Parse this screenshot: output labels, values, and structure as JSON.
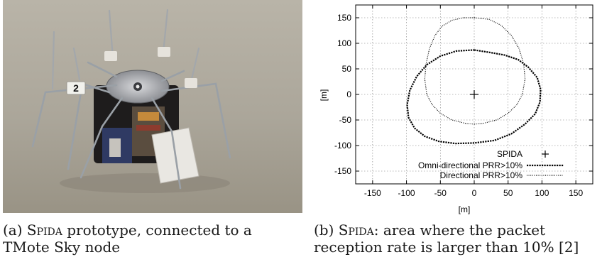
{
  "figure_a": {
    "photo_label": "2",
    "caption_prefix": "(a) ",
    "caption_name": "Spida",
    "caption_rest": " prototype, connected to a TMote Sky node"
  },
  "figure_b": {
    "caption_prefix": "(b) ",
    "caption_name": "Spida",
    "caption_rest": ": area where the packet reception rate is larger than 10% [2]"
  },
  "chart_data": {
    "type": "line",
    "xlabel": "[m]",
    "ylabel": "[m]",
    "xlim": [
      -175,
      175
    ],
    "ylim": [
      -175,
      175
    ],
    "xticks": [
      -150,
      -100,
      -50,
      0,
      50,
      100,
      150
    ],
    "yticks": [
      -150,
      -100,
      -50,
      0,
      50,
      100,
      150
    ],
    "grid": true,
    "legend_position": "bottom-right",
    "series": [
      {
        "name": "SPIDA",
        "style": "cross",
        "x": [
          0
        ],
        "y": [
          0
        ]
      },
      {
        "name": "Omni-directional PRR>10%",
        "style": "dashed-dense",
        "x": [
          0,
          24,
          45,
          65,
          80,
          93,
          98,
          97,
          90,
          75,
          55,
          30,
          0,
          -28,
          -52,
          -73,
          -88,
          -97,
          -99,
          -95,
          -85,
          -70,
          -50,
          -26,
          0
        ],
        "y": [
          87,
          82,
          77,
          68,
          53,
          33,
          10,
          -15,
          -38,
          -58,
          -77,
          -90,
          -95,
          -96,
          -92,
          -82,
          -66,
          -45,
          -20,
          8,
          35,
          58,
          75,
          85,
          87
        ]
      },
      {
        "name": "Directional PRR>10%",
        "style": "dotted",
        "x": [
          0,
          22,
          40,
          55,
          66,
          73,
          75,
          71,
          63,
          50,
          33,
          12,
          0,
          -12,
          -33,
          -50,
          -62,
          -70,
          -73,
          -71,
          -66,
          -58,
          -48,
          -33,
          -16,
          0
        ],
        "y": [
          150,
          147,
          135,
          115,
          90,
          60,
          30,
          0,
          -20,
          -37,
          -50,
          -57,
          -58,
          -57,
          -50,
          -37,
          -20,
          0,
          30,
          60,
          90,
          115,
          133,
          145,
          150,
          150
        ]
      }
    ]
  }
}
